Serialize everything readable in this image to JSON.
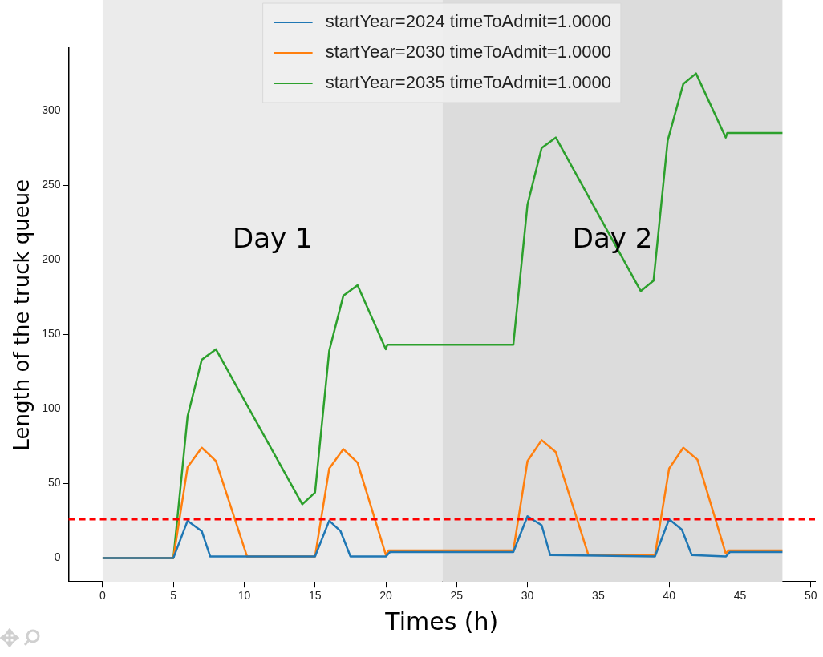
{
  "chart_data": {
    "type": "line",
    "xlabel": "Times (h)",
    "ylabel": "Length of the truck queue",
    "xlim": [
      -2.4,
      50.3
    ],
    "xticks": [
      0,
      5,
      10,
      15,
      20,
      25,
      30,
      35,
      40,
      45,
      50
    ],
    "ylim": [
      -16,
      342
    ],
    "yticks": [
      0,
      50,
      100,
      150,
      200,
      250,
      300
    ],
    "grid": false,
    "legend": "top",
    "marker": "none",
    "line_style": "solid",
    "series": [
      {
        "name": "startYear=2024 timeToAdmit=1.0000",
        "color": "#1f77b4",
        "x": [
          0,
          5,
          6,
          7,
          7.6,
          15,
          16,
          16.8,
          17.5,
          20,
          20.3,
          29,
          30,
          31,
          31.6,
          39,
          40,
          40.9,
          41.6,
          44,
          44.3,
          48
        ],
        "values": [
          0,
          0,
          25,
          18,
          1,
          1,
          25,
          18,
          1,
          1,
          4,
          4,
          28,
          22,
          2,
          1,
          26,
          19,
          2,
          1,
          4,
          4
        ]
      },
      {
        "name": "startYear=2030 timeToAdmit=1.0000",
        "color": "#ff7f0e",
        "x": [
          0,
          5,
          6,
          7,
          8,
          10.2,
          15,
          16,
          17,
          18,
          20,
          20.2,
          29,
          30,
          31,
          32,
          34.3,
          39,
          40,
          41,
          42,
          44,
          44.2,
          48
        ],
        "values": [
          0,
          0,
          61,
          74,
          65,
          1,
          1,
          60,
          73,
          64,
          2,
          5,
          5,
          65,
          79,
          71,
          2,
          2,
          60,
          74,
          66,
          3,
          5,
          5
        ]
      },
      {
        "name": "startYear=2035 timeToAdmit=1.0000",
        "color": "#2ca02c",
        "x": [
          0,
          5,
          6,
          7,
          8,
          14.1,
          15,
          16,
          17,
          18,
          20,
          20.1,
          29,
          30,
          31,
          32,
          38,
          38.9,
          39.9,
          41,
          41.9,
          44,
          44.1,
          48
        ],
        "values": [
          0,
          0,
          95,
          133,
          140,
          36,
          44,
          139,
          176,
          183,
          140,
          143,
          143,
          237,
          275,
          282,
          179,
          186,
          280,
          318,
          325,
          282,
          285,
          285
        ]
      }
    ],
    "bands": [
      {
        "axis": "x",
        "from": 0,
        "to": 24,
        "color": "#ebebeb"
      },
      {
        "axis": "x",
        "from": 24,
        "to": 48,
        "color": "#dcdcdc"
      }
    ],
    "ref_lines": [
      {
        "axis": "y",
        "value": 26,
        "color": "#ff0000",
        "line_style": "dashed"
      }
    ],
    "annotations": [
      "Day 1",
      "Day 2"
    ]
  }
}
